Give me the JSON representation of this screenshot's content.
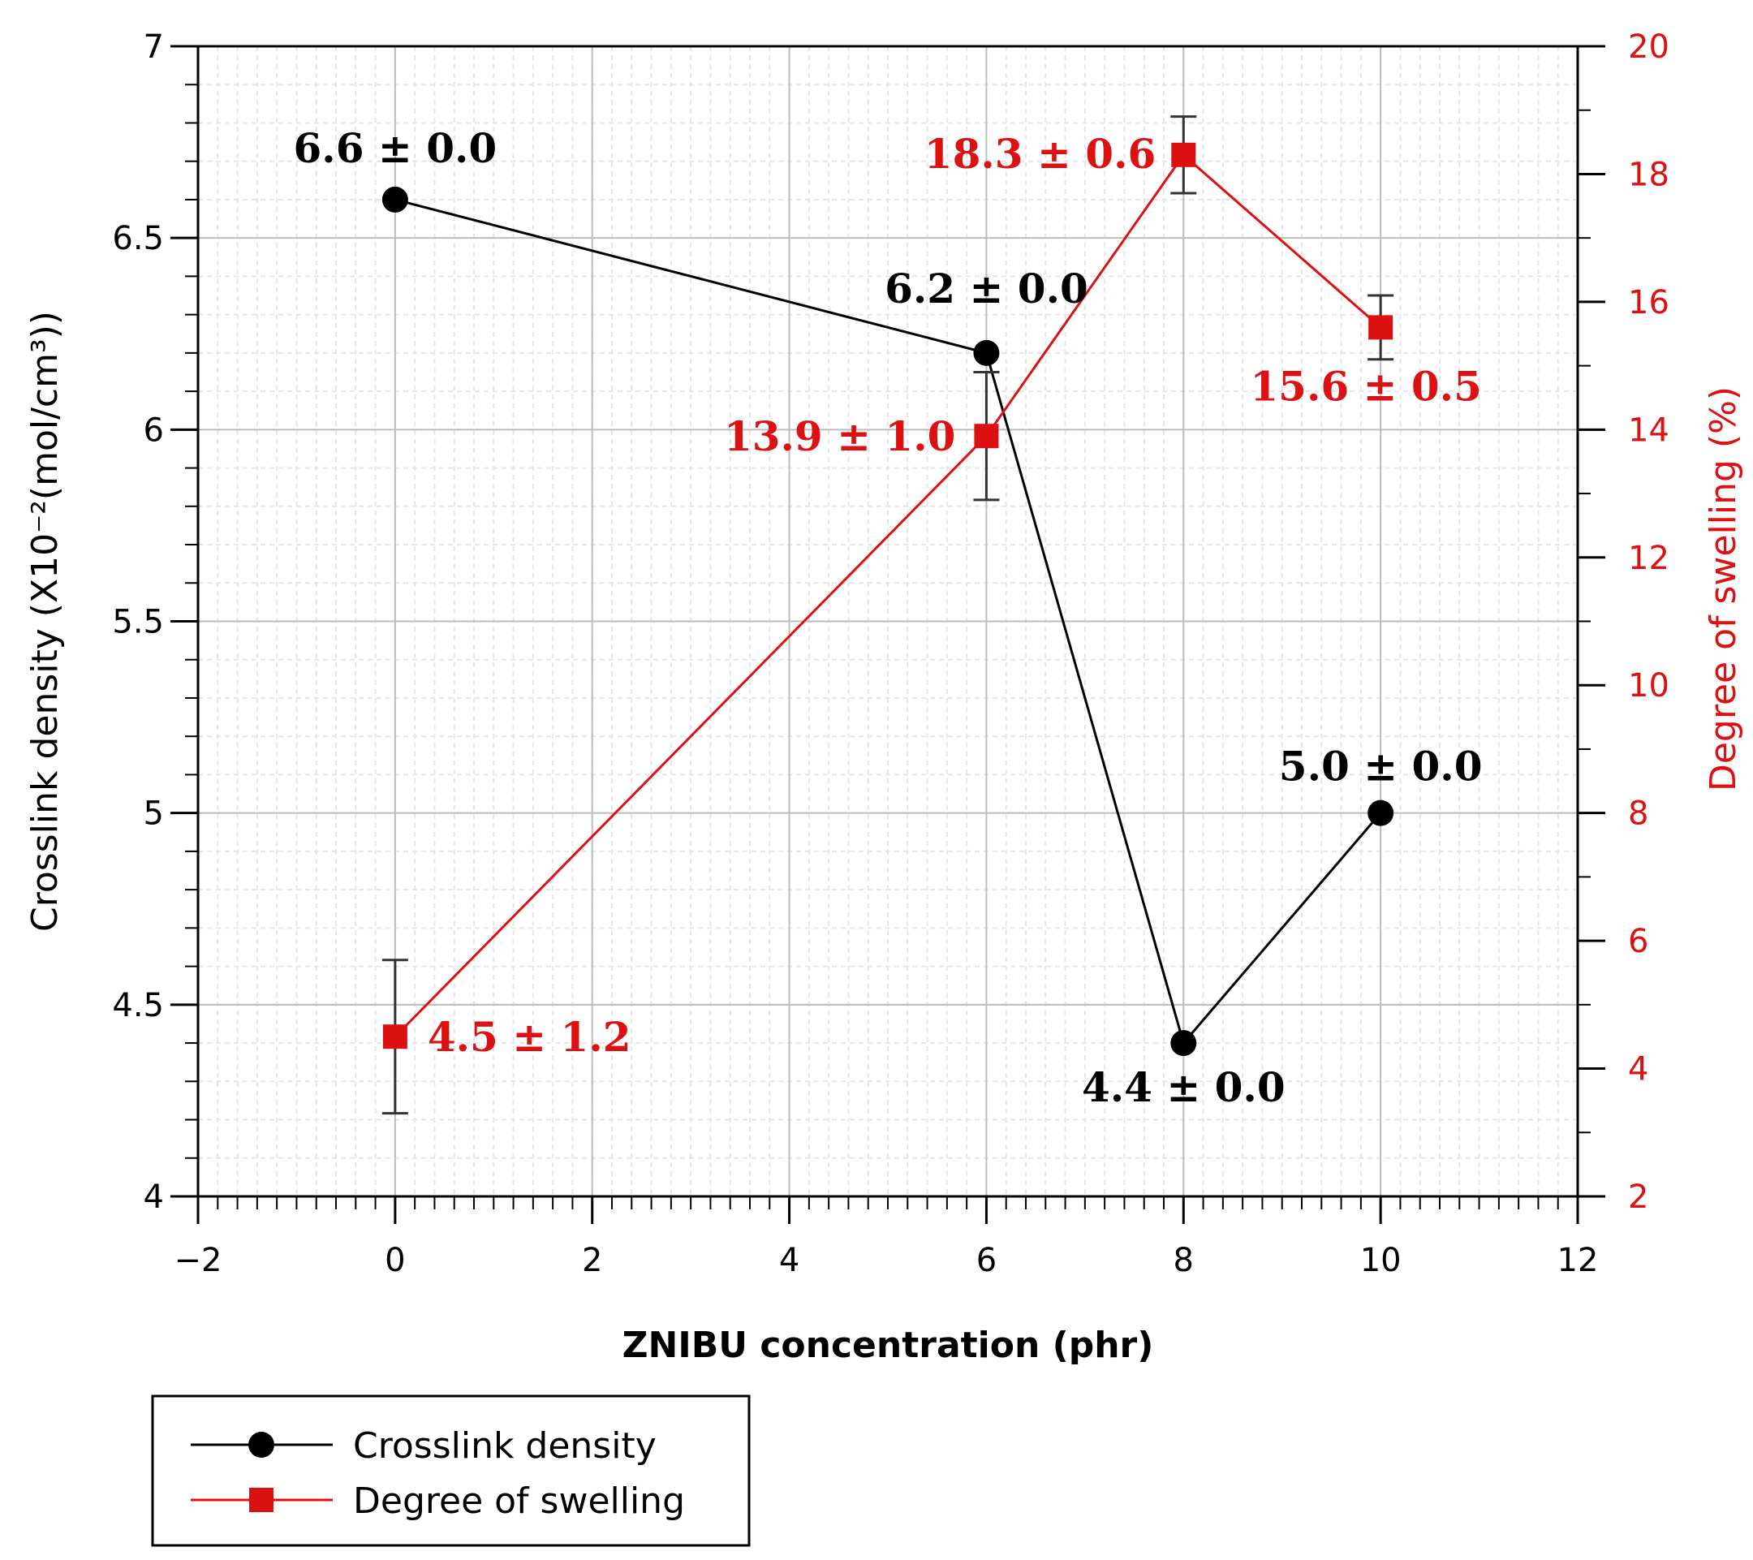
{
  "chart_data": {
    "type": "line",
    "xlabel": "ZNIBU concentration (phr)",
    "ylabel": "Crosslink density (X10⁻²(mol/cm³))",
    "y2label": "Degree of swelling (%)",
    "xlim": [
      -2,
      12
    ],
    "ylim": [
      4,
      7
    ],
    "y2lim": [
      2,
      20
    ],
    "xticks": [
      "−2",
      "0",
      "2",
      "4",
      "6",
      "8",
      "10",
      "12"
    ],
    "yticks": [
      "4",
      "4.5",
      "5",
      "5.5",
      "6",
      "6.5",
      "7"
    ],
    "y2ticks": [
      "2",
      "4",
      "6",
      "8",
      "10",
      "12",
      "14",
      "16",
      "18",
      "20"
    ],
    "grid": true,
    "legend_position": "bottom-left, below plot",
    "series": [
      {
        "name": "Crosslink density",
        "axis": "left",
        "color": "#000000",
        "marker": "circle",
        "x": [
          0,
          6,
          8,
          10
        ],
        "y": [
          6.6,
          6.2,
          4.4,
          5.0
        ],
        "error": [
          0.0,
          0.0,
          0.0,
          0.0
        ],
        "labels": [
          "6.6 ± 0.0",
          "6.2 ± 0.0",
          "4.4 ± 0.0",
          "5.0 ± 0.0"
        ]
      },
      {
        "name": "Degree of swelling",
        "axis": "right",
        "color": "#dd1111",
        "marker": "square",
        "x": [
          0,
          6,
          8,
          10
        ],
        "y": [
          4.5,
          13.9,
          18.3,
          15.6
        ],
        "error": [
          1.2,
          1.0,
          0.6,
          0.5
        ],
        "labels": [
          "4.5 ± 1.2",
          "13.9 ± 1.0",
          "18.3 ± 0.6",
          "15.6 ± 0.5"
        ]
      }
    ]
  }
}
